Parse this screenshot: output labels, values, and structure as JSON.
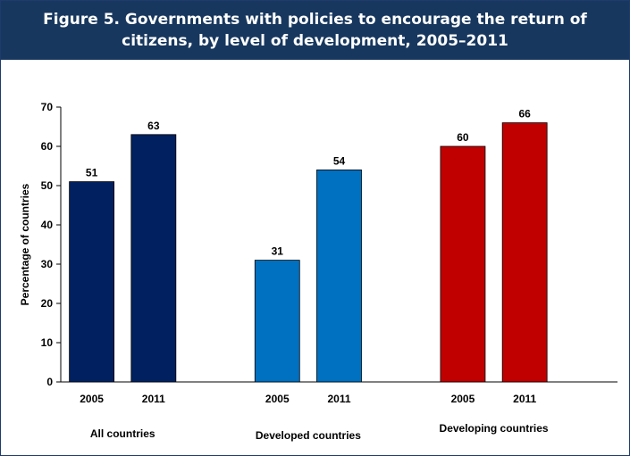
{
  "chart_data": {
    "type": "bar",
    "title": "Figure 5. Governments with policies to encourage the return of citizens, by level of development, 2005–2011",
    "ylabel": "Percentage of countries",
    "ylim": [
      0,
      70
    ],
    "yticks": [
      0,
      10,
      20,
      30,
      40,
      50,
      60,
      70
    ],
    "grid": false,
    "legend": "none",
    "groups": [
      {
        "name": "All countries",
        "color": "#002060",
        "bars": [
          {
            "category": "2005",
            "value": 51,
            "value_label": "51"
          },
          {
            "category": "2011",
            "value": 63,
            "value_label": "63"
          }
        ]
      },
      {
        "name": "Developed countries",
        "color": "#0070c0",
        "bars": [
          {
            "category": "2005",
            "value": 31,
            "value_label": "31"
          },
          {
            "category": "2011",
            "value": 54,
            "value_label": "54"
          }
        ]
      },
      {
        "name": "Developing countries",
        "color": "#c00000",
        "bars": [
          {
            "category": "2005",
            "value": 60,
            "value_label": "60"
          },
          {
            "category": "2011",
            "value": 66,
            "value_label": "66"
          }
        ]
      }
    ]
  }
}
